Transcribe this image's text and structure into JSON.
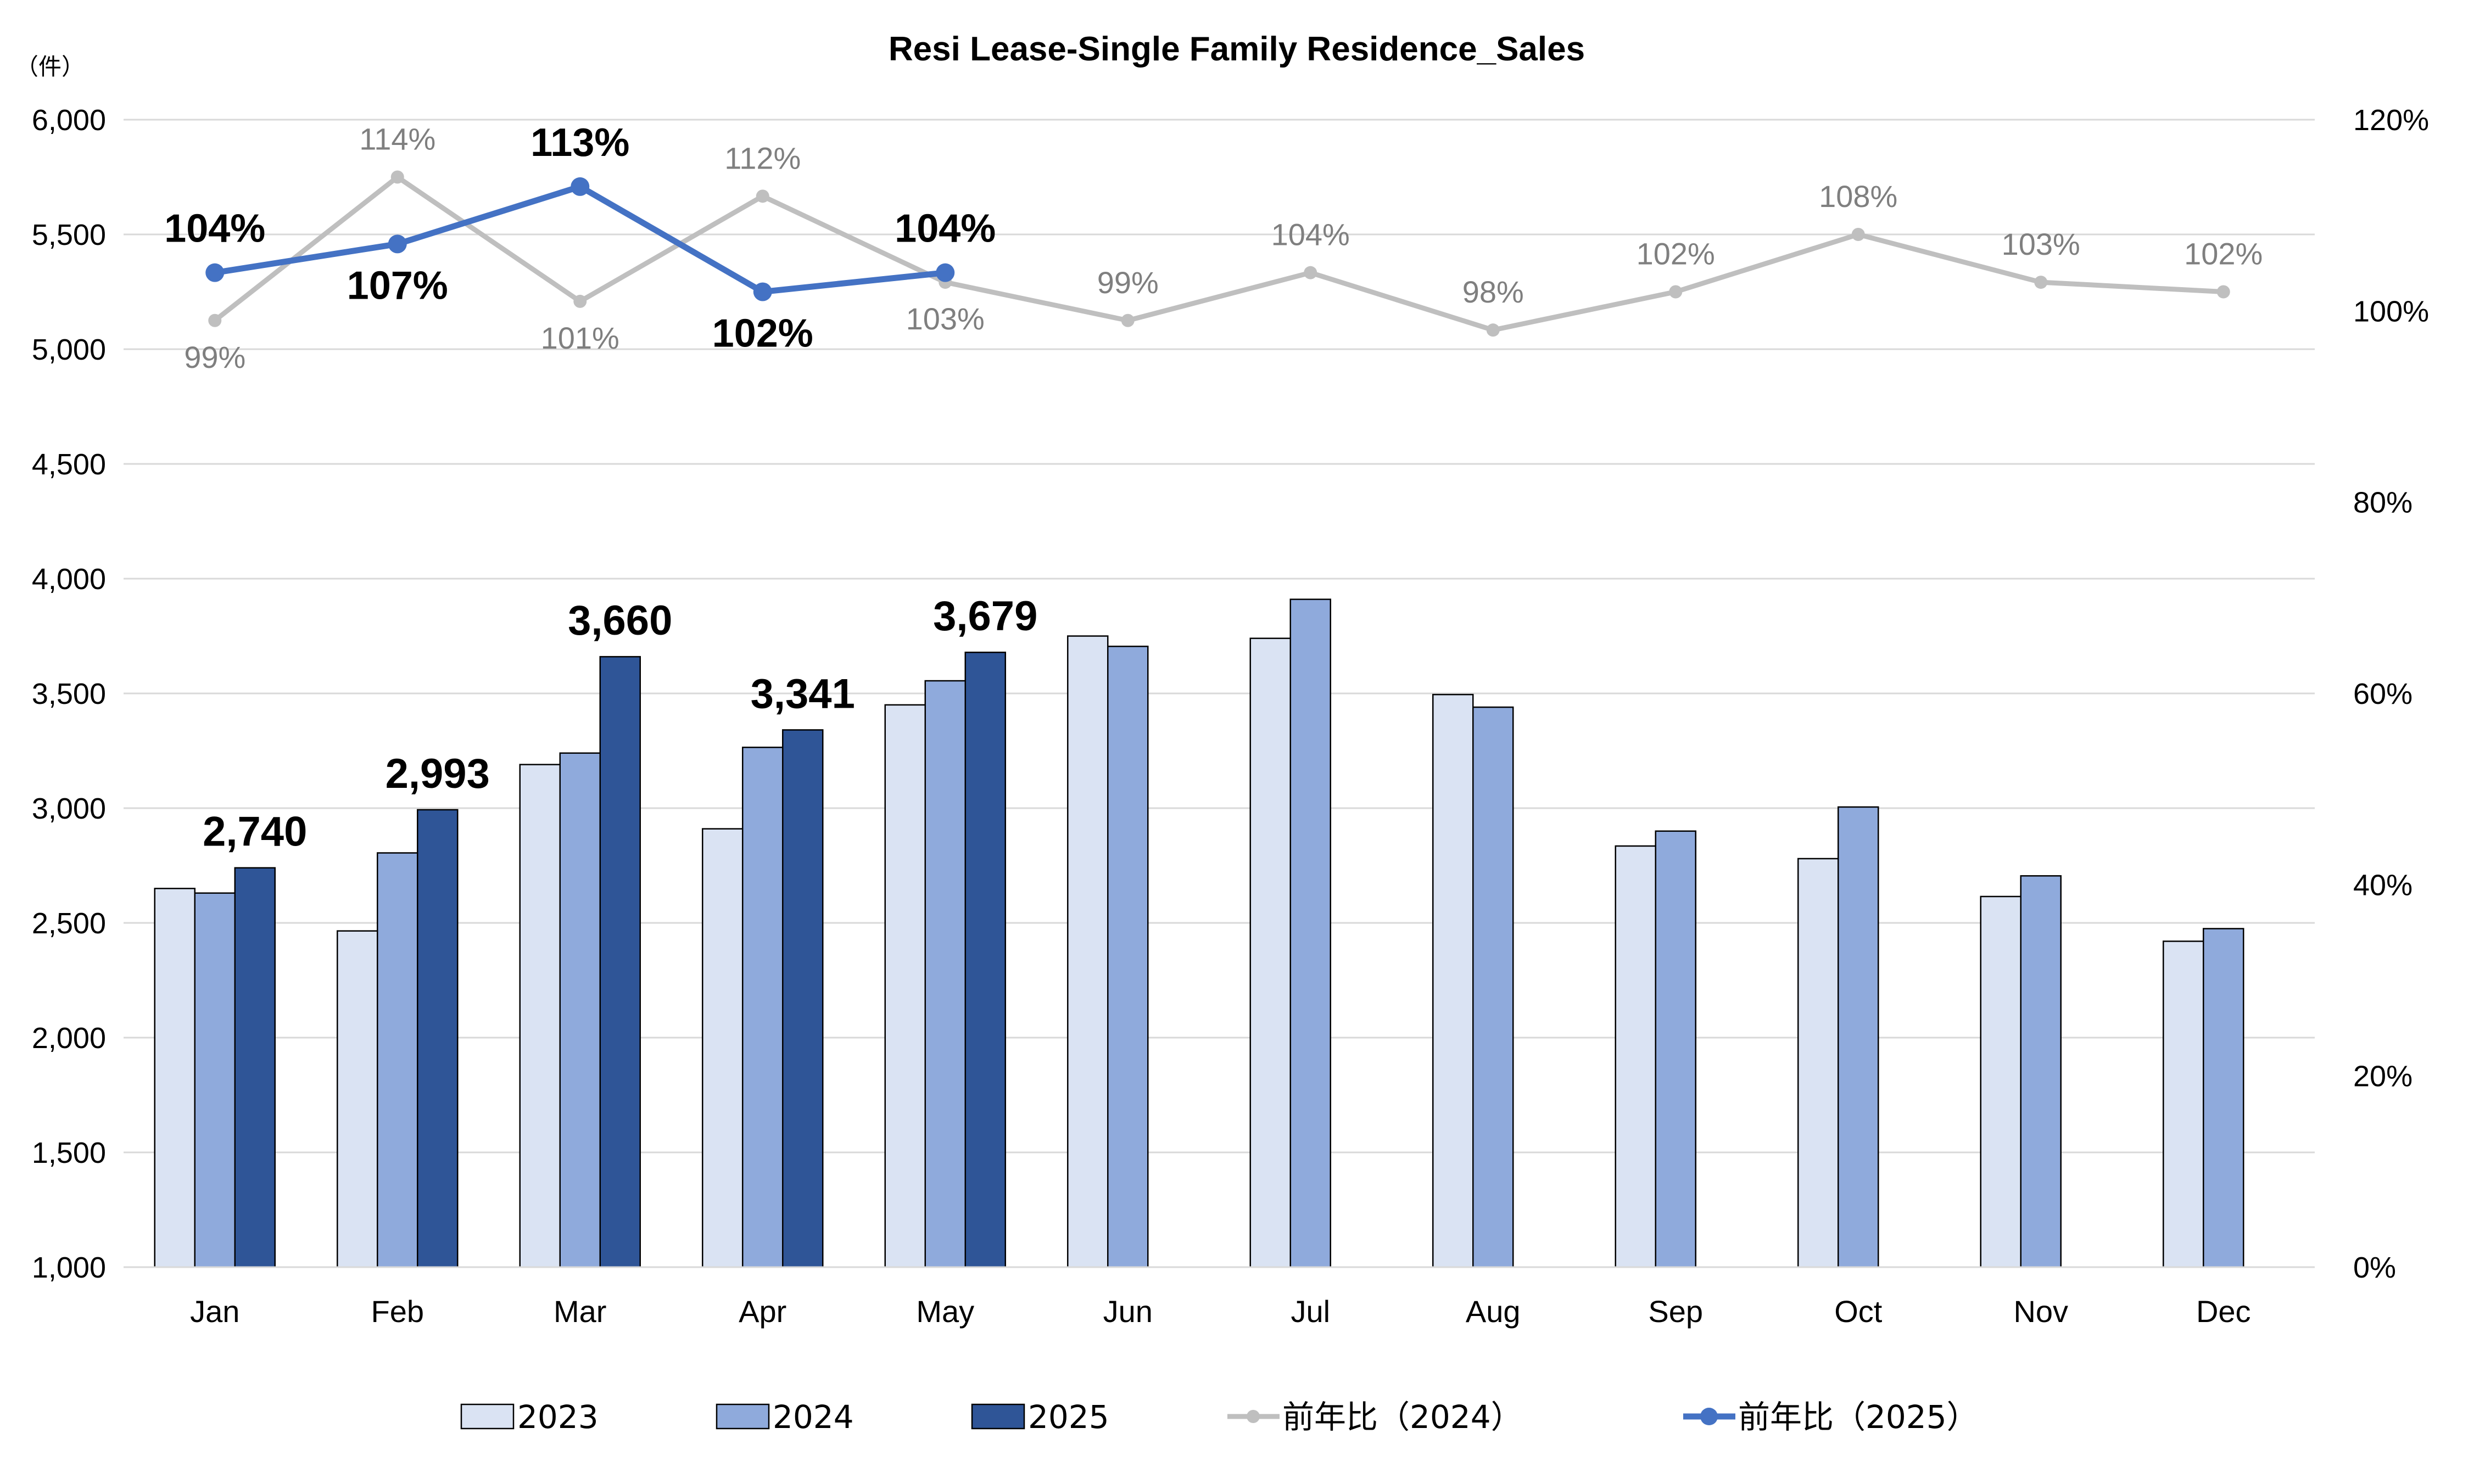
{
  "chart_data": {
    "type": "bar",
    "title": "Resi Lease-Single Family Residence_Sales",
    "unit_label": "（件）",
    "categories": [
      "Jan",
      "Feb",
      "Mar",
      "Apr",
      "May",
      "Jun",
      "Jul",
      "Aug",
      "Sep",
      "Oct",
      "Nov",
      "Dec"
    ],
    "y_left": {
      "ylim": [
        1000,
        6000
      ],
      "ticks": [
        1000,
        1500,
        2000,
        2500,
        3000,
        3500,
        4000,
        4500,
        5000,
        5500,
        6000
      ],
      "tick_labels": [
        "1,000",
        "1,500",
        "2,000",
        "2,500",
        "3,000",
        "3,500",
        "4,000",
        "4,500",
        "5,000",
        "5,500",
        "6,000"
      ]
    },
    "y_right": {
      "ylim": [
        0,
        1.2
      ],
      "ticks": [
        0,
        0.2,
        0.4,
        0.6,
        0.8,
        1.0,
        1.2
      ],
      "tick_labels": [
        "0%",
        "20%",
        "40%",
        "60%",
        "80%",
        "100%",
        "120%"
      ]
    },
    "grid": "horizontal",
    "legend_position": "bottom",
    "series": [
      {
        "name": "2023",
        "type": "bar",
        "color": "#dae3f3",
        "values": [
          2650,
          2465,
          3190,
          2910,
          3450,
          3750,
          3740,
          3495,
          2835,
          2780,
          2615,
          2420
        ]
      },
      {
        "name": "2024",
        "type": "bar",
        "color": "#8faadc",
        "values": [
          2630,
          2805,
          3240,
          3265,
          3555,
          3705,
          3910,
          3440,
          2900,
          3005,
          2705,
          2475
        ]
      },
      {
        "name": "2025",
        "type": "bar",
        "color": "#2f5597",
        "values": [
          2740,
          2993,
          3660,
          3341,
          3679,
          null,
          null,
          null,
          null,
          null,
          null,
          null
        ],
        "labels": [
          "2,740",
          "2,993",
          "3,660",
          "3,341",
          "3,679",
          "",
          "",
          "",
          "",
          "",
          "",
          ""
        ]
      },
      {
        "name": "前年比（2024）",
        "type": "line",
        "axis": "right",
        "color": "#bfbfbf",
        "values": [
          0.99,
          1.14,
          1.01,
          1.12,
          1.03,
          0.99,
          1.04,
          0.98,
          1.02,
          1.08,
          1.03,
          1.02
        ],
        "labels": [
          "99%",
          "114%",
          "101%",
          "112%",
          "103%",
          "99%",
          "104%",
          "98%",
          "102%",
          "108%",
          "103%",
          "102%"
        ]
      },
      {
        "name": "前年比（2025）",
        "type": "line",
        "axis": "right",
        "color": "#4472c4",
        "values": [
          1.04,
          1.07,
          1.13,
          1.02,
          1.04,
          null,
          null,
          null,
          null,
          null,
          null,
          null
        ],
        "labels": [
          "104%",
          "107%",
          "113%",
          "102%",
          "104%",
          "",
          "",
          "",
          "",
          "",
          "",
          ""
        ]
      }
    ]
  }
}
